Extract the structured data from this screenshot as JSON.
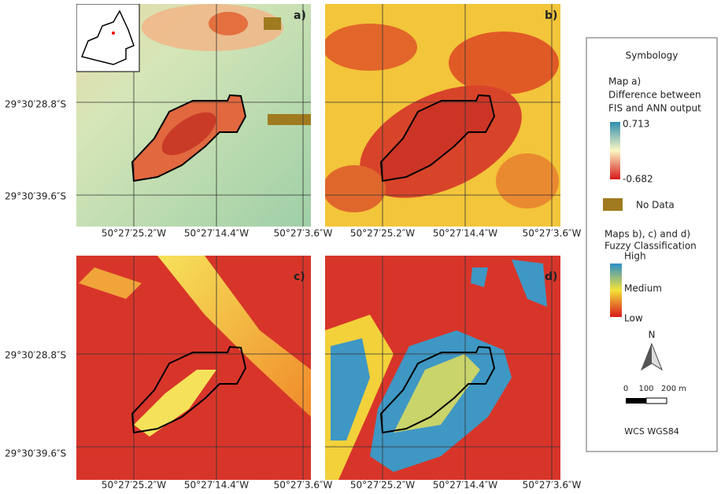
{
  "panels": [
    {
      "label": "a)",
      "lon_labels": [
        "50°27′25.2″W",
        "50°27′14.4″W",
        "50°27′3.6″W"
      ]
    },
    {
      "label": "b)",
      "lon_labels": [
        "50°27′25.2″W",
        "50°27′14.4″W",
        "50°27′3.6″W"
      ]
    },
    {
      "label": "c)",
      "lon_labels": [
        "50°27′25.2″W",
        "50°27′14.4″W",
        "50°27′3.6″W"
      ]
    },
    {
      "label": "d)",
      "lon_labels": [
        "50°27′25.2″W",
        "50°27′14.4″W",
        "50°27′3.6″W"
      ]
    }
  ],
  "rows": [
    {
      "lat_labels": [
        "29°30′28.8″S",
        "29°30′39.6″S"
      ]
    },
    {
      "lat_labels": [
        "29°30′28.8″S",
        "29°30′39.6″S"
      ]
    }
  ],
  "legend": {
    "title": "Symbology",
    "map_a": {
      "heading": "Map a)",
      "line1": "Difference between",
      "line2": "FIS and ANN output",
      "max": "0.713",
      "min": "-0.682"
    },
    "no_data": "No Data",
    "maps_bcd": {
      "heading": "Maps b), c) and d)",
      "subheading": "Fuzzy Classification",
      "high": "High",
      "medium": "Medium",
      "low": "Low"
    },
    "north": "N",
    "scale": [
      "0",
      "100",
      "200 m"
    ],
    "crs": "WCS WGS84"
  }
}
